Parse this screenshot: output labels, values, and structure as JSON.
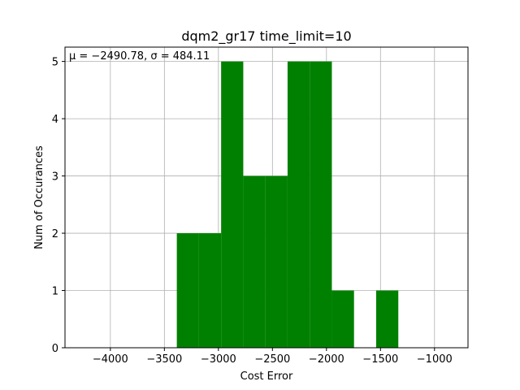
{
  "chart_data": {
    "type": "bar",
    "title": "dqm2_gr17 time_limit=10",
    "xlabel": "Cost Error",
    "ylabel": "Num of Occurances",
    "annotation": "μ = −2490.78,  σ = 484.11",
    "xlim": [
      -4420,
      -690
    ],
    "ylim": [
      0,
      5.25
    ],
    "xticks": [
      -4000,
      -3500,
      -3000,
      -2500,
      -2000,
      -1500,
      -1000
    ],
    "xtick_labels": [
      "−4000",
      "−3500",
      "−3000",
      "−2500",
      "−2000",
      "−1500",
      "−1000"
    ],
    "yticks": [
      0,
      1,
      2,
      3,
      4,
      5
    ],
    "ytick_labels": [
      "0",
      "1",
      "2",
      "3",
      "4",
      "5"
    ],
    "grid": true,
    "color": "#008000",
    "bins": [
      {
        "x0": -3385,
        "x1": -3180,
        "count": 2
      },
      {
        "x0": -3180,
        "x1": -2975,
        "count": 2
      },
      {
        "x0": -2975,
        "x1": -2770,
        "count": 5
      },
      {
        "x0": -2770,
        "x1": -2565,
        "count": 3
      },
      {
        "x0": -2565,
        "x1": -2360,
        "count": 3
      },
      {
        "x0": -2360,
        "x1": -2155,
        "count": 5
      },
      {
        "x0": -2155,
        "x1": -1950,
        "count": 5
      },
      {
        "x0": -1950,
        "x1": -1745,
        "count": 1
      },
      {
        "x0": -1745,
        "x1": -1540,
        "count": 0
      },
      {
        "x0": -1540,
        "x1": -1335,
        "count": 1
      }
    ]
  }
}
